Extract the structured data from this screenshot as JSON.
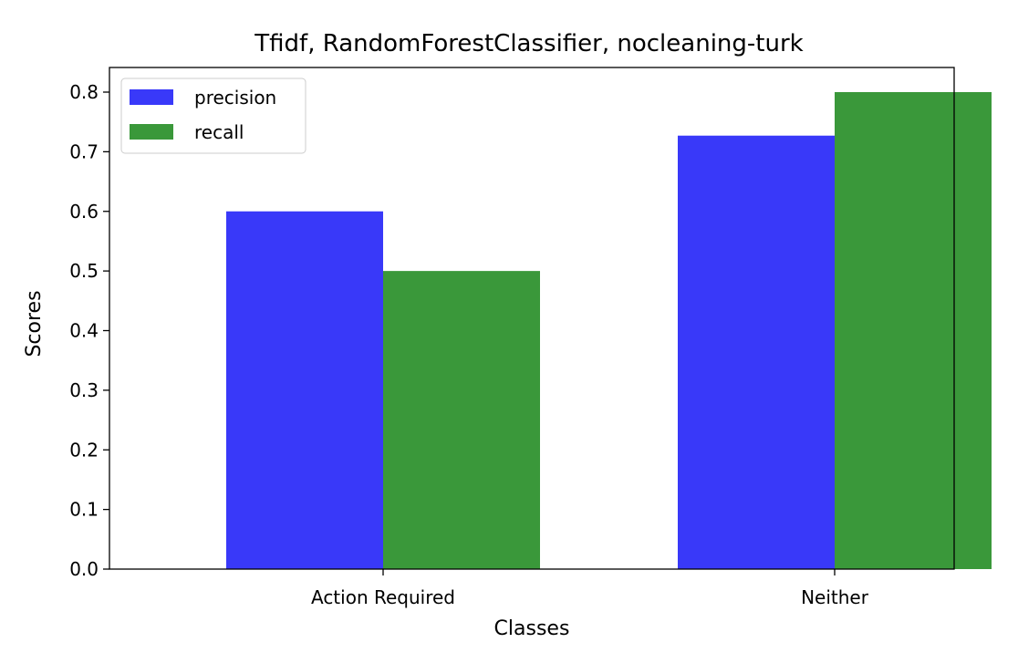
{
  "chart_data": {
    "type": "bar",
    "title": "Tfidf, RandomForestClassifier, nocleaning-turk",
    "xlabel": "Classes",
    "ylabel": "Scores",
    "categories": [
      "Action Required",
      "Neither"
    ],
    "series": [
      {
        "name": "precision",
        "values": [
          0.6,
          0.727
        ],
        "color": "#3939f9"
      },
      {
        "name": "recall",
        "values": [
          0.5,
          0.8
        ],
        "color": "#3a983a"
      }
    ],
    "ylim": [
      0,
      0.84
    ],
    "yticks": [
      "0.0",
      "0.1",
      "0.2",
      "0.3",
      "0.4",
      "0.5",
      "0.6",
      "0.7",
      "0.8"
    ],
    "legend_position": "top-left",
    "grid": false
  }
}
